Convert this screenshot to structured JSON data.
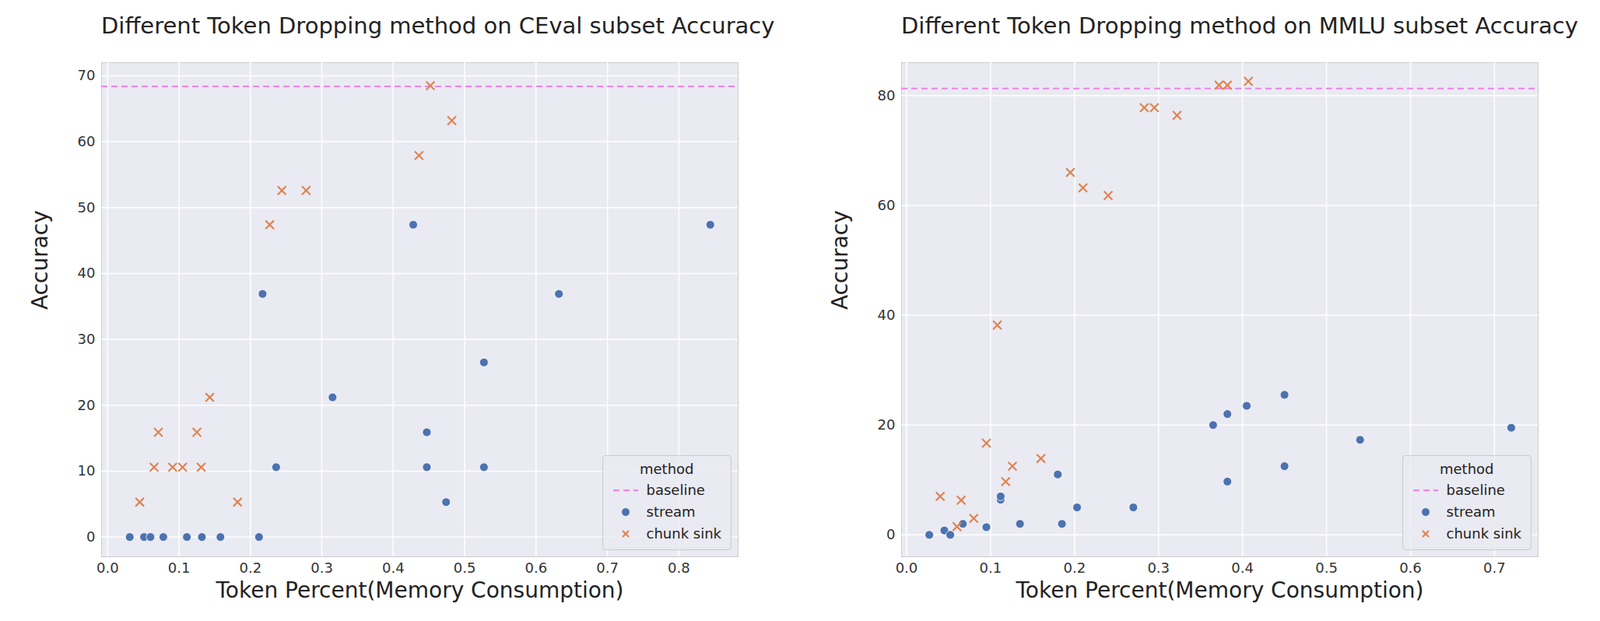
{
  "chart_data": [
    {
      "type": "scatter",
      "title": "Different Token Dropping method on CEval subset Accuracy",
      "x_label": "Token Percent(Memory Consumption)",
      "y_label": "Accuracy",
      "xlim": [
        -0.0085,
        0.883
      ],
      "ylim": [
        -3,
        72
      ],
      "xticks": [
        {
          "value": 0,
          "label": "0.0"
        },
        0.1,
        0.2,
        0.3,
        0.4,
        0.5,
        0.6,
        0.7,
        0.8
      ],
      "yticks": [
        0,
        10,
        20,
        30,
        40,
        50,
        60,
        70
      ],
      "grid": true,
      "legend": "lower right",
      "legend_title": "method",
      "series": [
        {
          "name": "baseline",
          "type": "hline",
          "color": "#ee82ee",
          "line_style": "dashed",
          "values": [
            68.4
          ]
        },
        {
          "name": "stream",
          "type": "scatter",
          "color": "#4c72b0",
          "marker": "circle",
          "x": [
            0.031,
            0.051,
            0.06,
            0.078,
            0.111,
            0.132,
            0.158,
            0.212,
            0.217,
            0.236,
            0.315,
            0.428,
            0.447,
            0.447,
            0.474,
            0.527,
            0.527,
            0.632,
            0.844
          ],
          "values": [
            0,
            0,
            0,
            0,
            0,
            0,
            0,
            0,
            36.9,
            10.6,
            21.2,
            47.4,
            15.9,
            10.6,
            5.3,
            10.6,
            26.5,
            36.9,
            47.4
          ]
        },
        {
          "name": "chunk sink",
          "type": "scatter",
          "color": "#dd8452",
          "marker": "x",
          "x": [
            0.045,
            0.065,
            0.071,
            0.091,
            0.105,
            0.125,
            0.131,
            0.143,
            0.182,
            0.227,
            0.244,
            0.278,
            0.436,
            0.452,
            0.482
          ],
          "values": [
            5.3,
            10.6,
            15.9,
            10.6,
            10.6,
            15.9,
            10.6,
            21.2,
            5.3,
            47.4,
            52.6,
            52.6,
            57.9,
            68.5,
            63.2
          ]
        }
      ]
    },
    {
      "type": "scatter",
      "title": "Different Token Dropping method on MMLU subset Accuracy",
      "x_label": "Token Percent(Memory Consumption)",
      "y_label": "Accuracy",
      "xlim": [
        -0.006,
        0.752
      ],
      "ylim": [
        -4,
        86
      ],
      "xticks": [
        {
          "value": 0,
          "label": "0.0"
        },
        0.1,
        0.2,
        0.3,
        0.4,
        0.5,
        0.6,
        0.7
      ],
      "yticks": [
        0,
        20,
        40,
        60,
        80
      ],
      "grid": true,
      "legend": "lower right",
      "legend_title": "method",
      "series": [
        {
          "name": "baseline",
          "type": "hline",
          "color": "#ee82ee",
          "line_style": "dashed",
          "values": [
            81.3
          ]
        },
        {
          "name": "stream",
          "type": "scatter",
          "color": "#4c72b0",
          "marker": "circle",
          "x": [
            0.027,
            0.045,
            0.052,
            0.067,
            0.095,
            0.112,
            0.112,
            0.135,
            0.18,
            0.185,
            0.203,
            0.27,
            0.365,
            0.382,
            0.382,
            0.405,
            0.45,
            0.45,
            0.54,
            0.72
          ],
          "values": [
            0,
            0.8,
            0,
            2,
            1.4,
            6.4,
            7,
            2,
            11,
            2,
            5,
            5,
            20,
            22,
            9.7,
            23.5,
            25.5,
            12.5,
            17.3,
            19.5
          ]
        },
        {
          "name": "chunk sink",
          "type": "scatter",
          "color": "#dd8452",
          "marker": "x",
          "x": [
            0.04,
            0.06,
            0.065,
            0.08,
            0.095,
            0.108,
            0.118,
            0.126,
            0.16,
            0.195,
            0.21,
            0.24,
            0.283,
            0.295,
            0.322,
            0.372,
            0.382,
            0.407
          ],
          "values": [
            7,
            1.5,
            6.3,
            3,
            16.7,
            38.2,
            9.7,
            12.5,
            13.9,
            66,
            63.2,
            61.8,
            77.8,
            77.8,
            76.4,
            81.9,
            81.9,
            82.6
          ]
        }
      ]
    }
  ]
}
